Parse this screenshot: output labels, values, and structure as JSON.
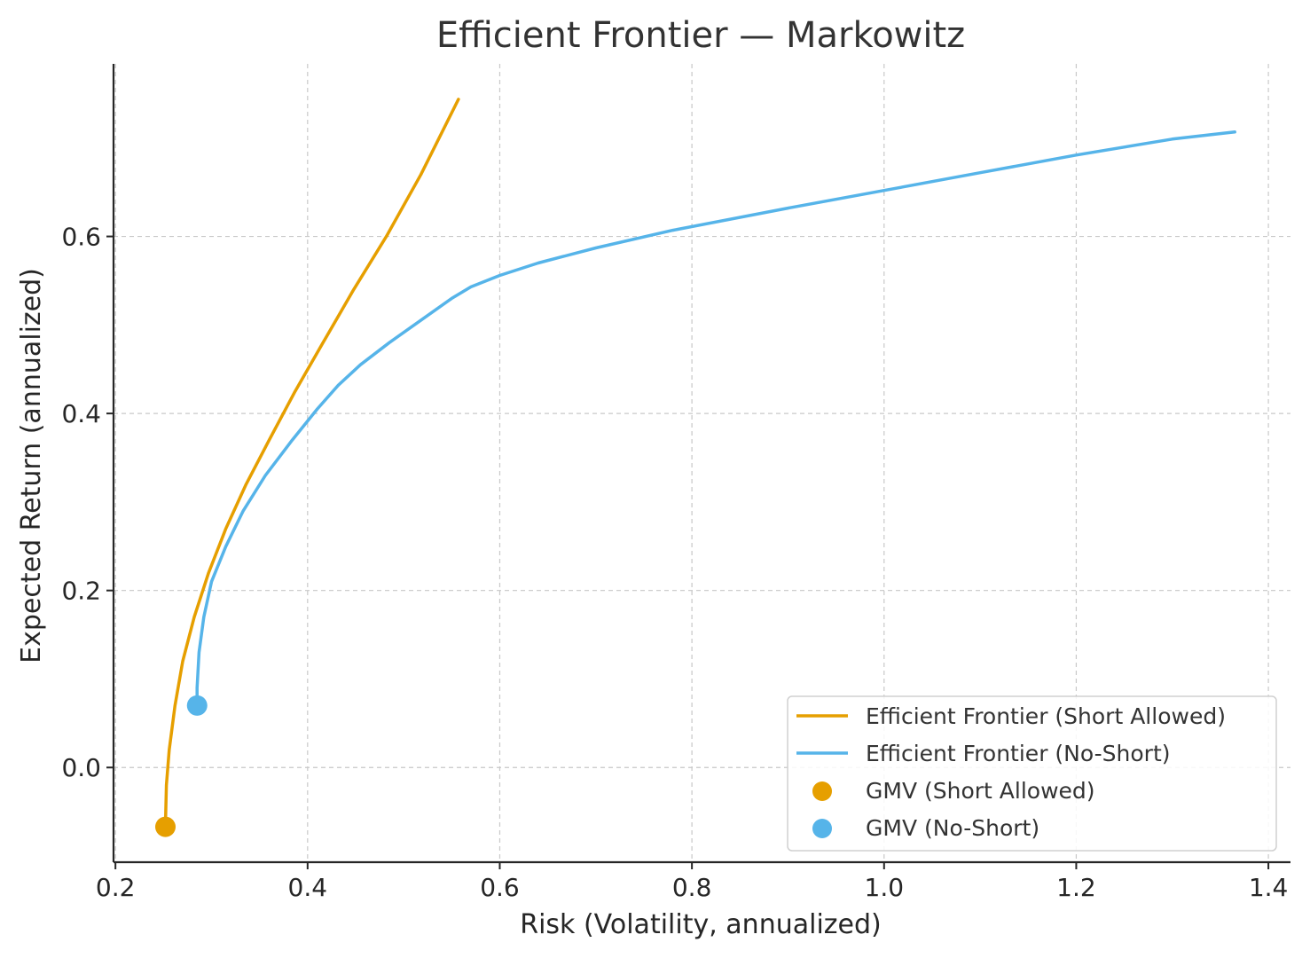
{
  "chart_data": {
    "type": "line",
    "title": "Efficient Frontier — Markowitz",
    "xlabel": "Risk (Volatility, annualized)",
    "ylabel": "Expected Return (annualized)",
    "xlim": [
      0.198,
      1.423
    ],
    "ylim": [
      -0.107,
      0.795
    ],
    "xticks": [
      0.2,
      0.4,
      0.6,
      0.8,
      1.0,
      1.2,
      1.4
    ],
    "xtick_labels": [
      "0.2",
      "0.4",
      "0.6",
      "0.8",
      "1.0",
      "1.2",
      "1.4"
    ],
    "yticks": [
      0.0,
      0.2,
      0.4,
      0.6
    ],
    "ytick_labels": [
      "0.0",
      "0.2",
      "0.4",
      "0.6"
    ],
    "grid": true,
    "legend_position": "bottom-right",
    "colors": {
      "short": "#e69f00",
      "noshort": "#56b4e9"
    },
    "series": [
      {
        "name": "Efficient Frontier (Short Allowed)",
        "kind": "line",
        "x": [
          0.252,
          0.253,
          0.256,
          0.262,
          0.27,
          0.282,
          0.297,
          0.315,
          0.336,
          0.36,
          0.387,
          0.416,
          0.448,
          0.482,
          0.518,
          0.557
        ],
        "y": [
          -0.067,
          -0.02,
          0.02,
          0.07,
          0.12,
          0.17,
          0.22,
          0.27,
          0.32,
          0.37,
          0.425,
          0.48,
          0.54,
          0.6,
          0.67,
          0.755
        ]
      },
      {
        "name": "Efficient Frontier (No-Short)",
        "kind": "line",
        "x": [
          0.285,
          0.285,
          0.287,
          0.292,
          0.3,
          0.315,
          0.333,
          0.356,
          0.384,
          0.41,
          0.432,
          0.455,
          0.485,
          0.52,
          0.55,
          0.57,
          0.6,
          0.64,
          0.7,
          0.78,
          0.9,
          1.0,
          1.1,
          1.2,
          1.3,
          1.365
        ],
        "y": [
          0.07,
          0.09,
          0.13,
          0.17,
          0.21,
          0.25,
          0.29,
          0.33,
          0.37,
          0.405,
          0.432,
          0.455,
          0.48,
          0.507,
          0.53,
          0.543,
          0.556,
          0.57,
          0.587,
          0.607,
          0.632,
          0.652,
          0.672,
          0.692,
          0.71,
          0.718
        ]
      },
      {
        "name": "GMV (Short Allowed)",
        "kind": "point",
        "x": [
          0.252
        ],
        "y": [
          -0.067
        ]
      },
      {
        "name": "GMV (No-Short)",
        "kind": "point",
        "x": [
          0.285
        ],
        "y": [
          0.07
        ]
      }
    ]
  }
}
